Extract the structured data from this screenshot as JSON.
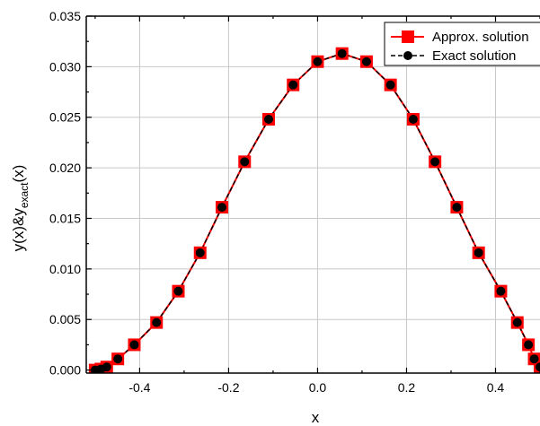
{
  "chart_data": {
    "type": "line",
    "title": "",
    "xlabel": "x",
    "ylabel": {
      "base": "y(x)&y",
      "sub": "exact",
      "tail": "(x)"
    },
    "xlim": [
      -0.52,
      0.5
    ],
    "ylim": [
      -0.0003,
      0.035
    ],
    "xticks": [
      -0.4,
      -0.2,
      0.0,
      0.2,
      0.4
    ],
    "xtick_labels": [
      "-0.4",
      "-0.2",
      "0.0",
      "0.2",
      "0.4"
    ],
    "yticks": [
      0.0,
      0.005,
      0.01,
      0.015,
      0.02,
      0.025,
      0.03,
      0.035
    ],
    "ytick_labels": [
      "0.000",
      "0.005",
      "0.010",
      "0.015",
      "0.020",
      "0.025",
      "0.030",
      "0.035"
    ],
    "grid": true,
    "legend_position": "top-right",
    "series": [
      {
        "name": "Approx. solution",
        "color": "#ff0000",
        "marker": "square",
        "line": "solid",
        "x": [
          -0.5,
          -0.487,
          -0.474,
          -0.449,
          -0.412,
          -0.362,
          -0.313,
          -0.264,
          -0.215,
          -0.164,
          -0.11,
          -0.055,
          0.0,
          0.055,
          0.11,
          0.164,
          0.215,
          0.264,
          0.313,
          0.362,
          0.412,
          0.449,
          0.474,
          0.487,
          0.5
        ],
        "y": [
          0.0,
          0.0001,
          0.0003,
          0.0011,
          0.0025,
          0.0047,
          0.0078,
          0.0116,
          0.0161,
          0.0206,
          0.0248,
          0.0282,
          0.0305,
          0.0313,
          0.0305,
          0.0282,
          0.0248,
          0.0206,
          0.0161,
          0.0116,
          0.0078,
          0.0047,
          0.0025,
          0.0011,
          0.0003
        ]
      },
      {
        "name": "Exact solution",
        "color": "#000000",
        "marker": "circle",
        "line": "dashed",
        "x": [
          -0.5,
          -0.487,
          -0.474,
          -0.449,
          -0.412,
          -0.362,
          -0.313,
          -0.264,
          -0.215,
          -0.164,
          -0.11,
          -0.055,
          0.0,
          0.055,
          0.11,
          0.164,
          0.215,
          0.264,
          0.313,
          0.362,
          0.412,
          0.449,
          0.474,
          0.487,
          0.5
        ],
        "y": [
          0.0,
          0.0001,
          0.0003,
          0.0011,
          0.0025,
          0.0047,
          0.0078,
          0.0116,
          0.0161,
          0.0206,
          0.0248,
          0.0282,
          0.0305,
          0.0313,
          0.0305,
          0.0282,
          0.0248,
          0.0206,
          0.0161,
          0.0116,
          0.0078,
          0.0047,
          0.0025,
          0.0011,
          0.0003
        ]
      }
    ]
  }
}
